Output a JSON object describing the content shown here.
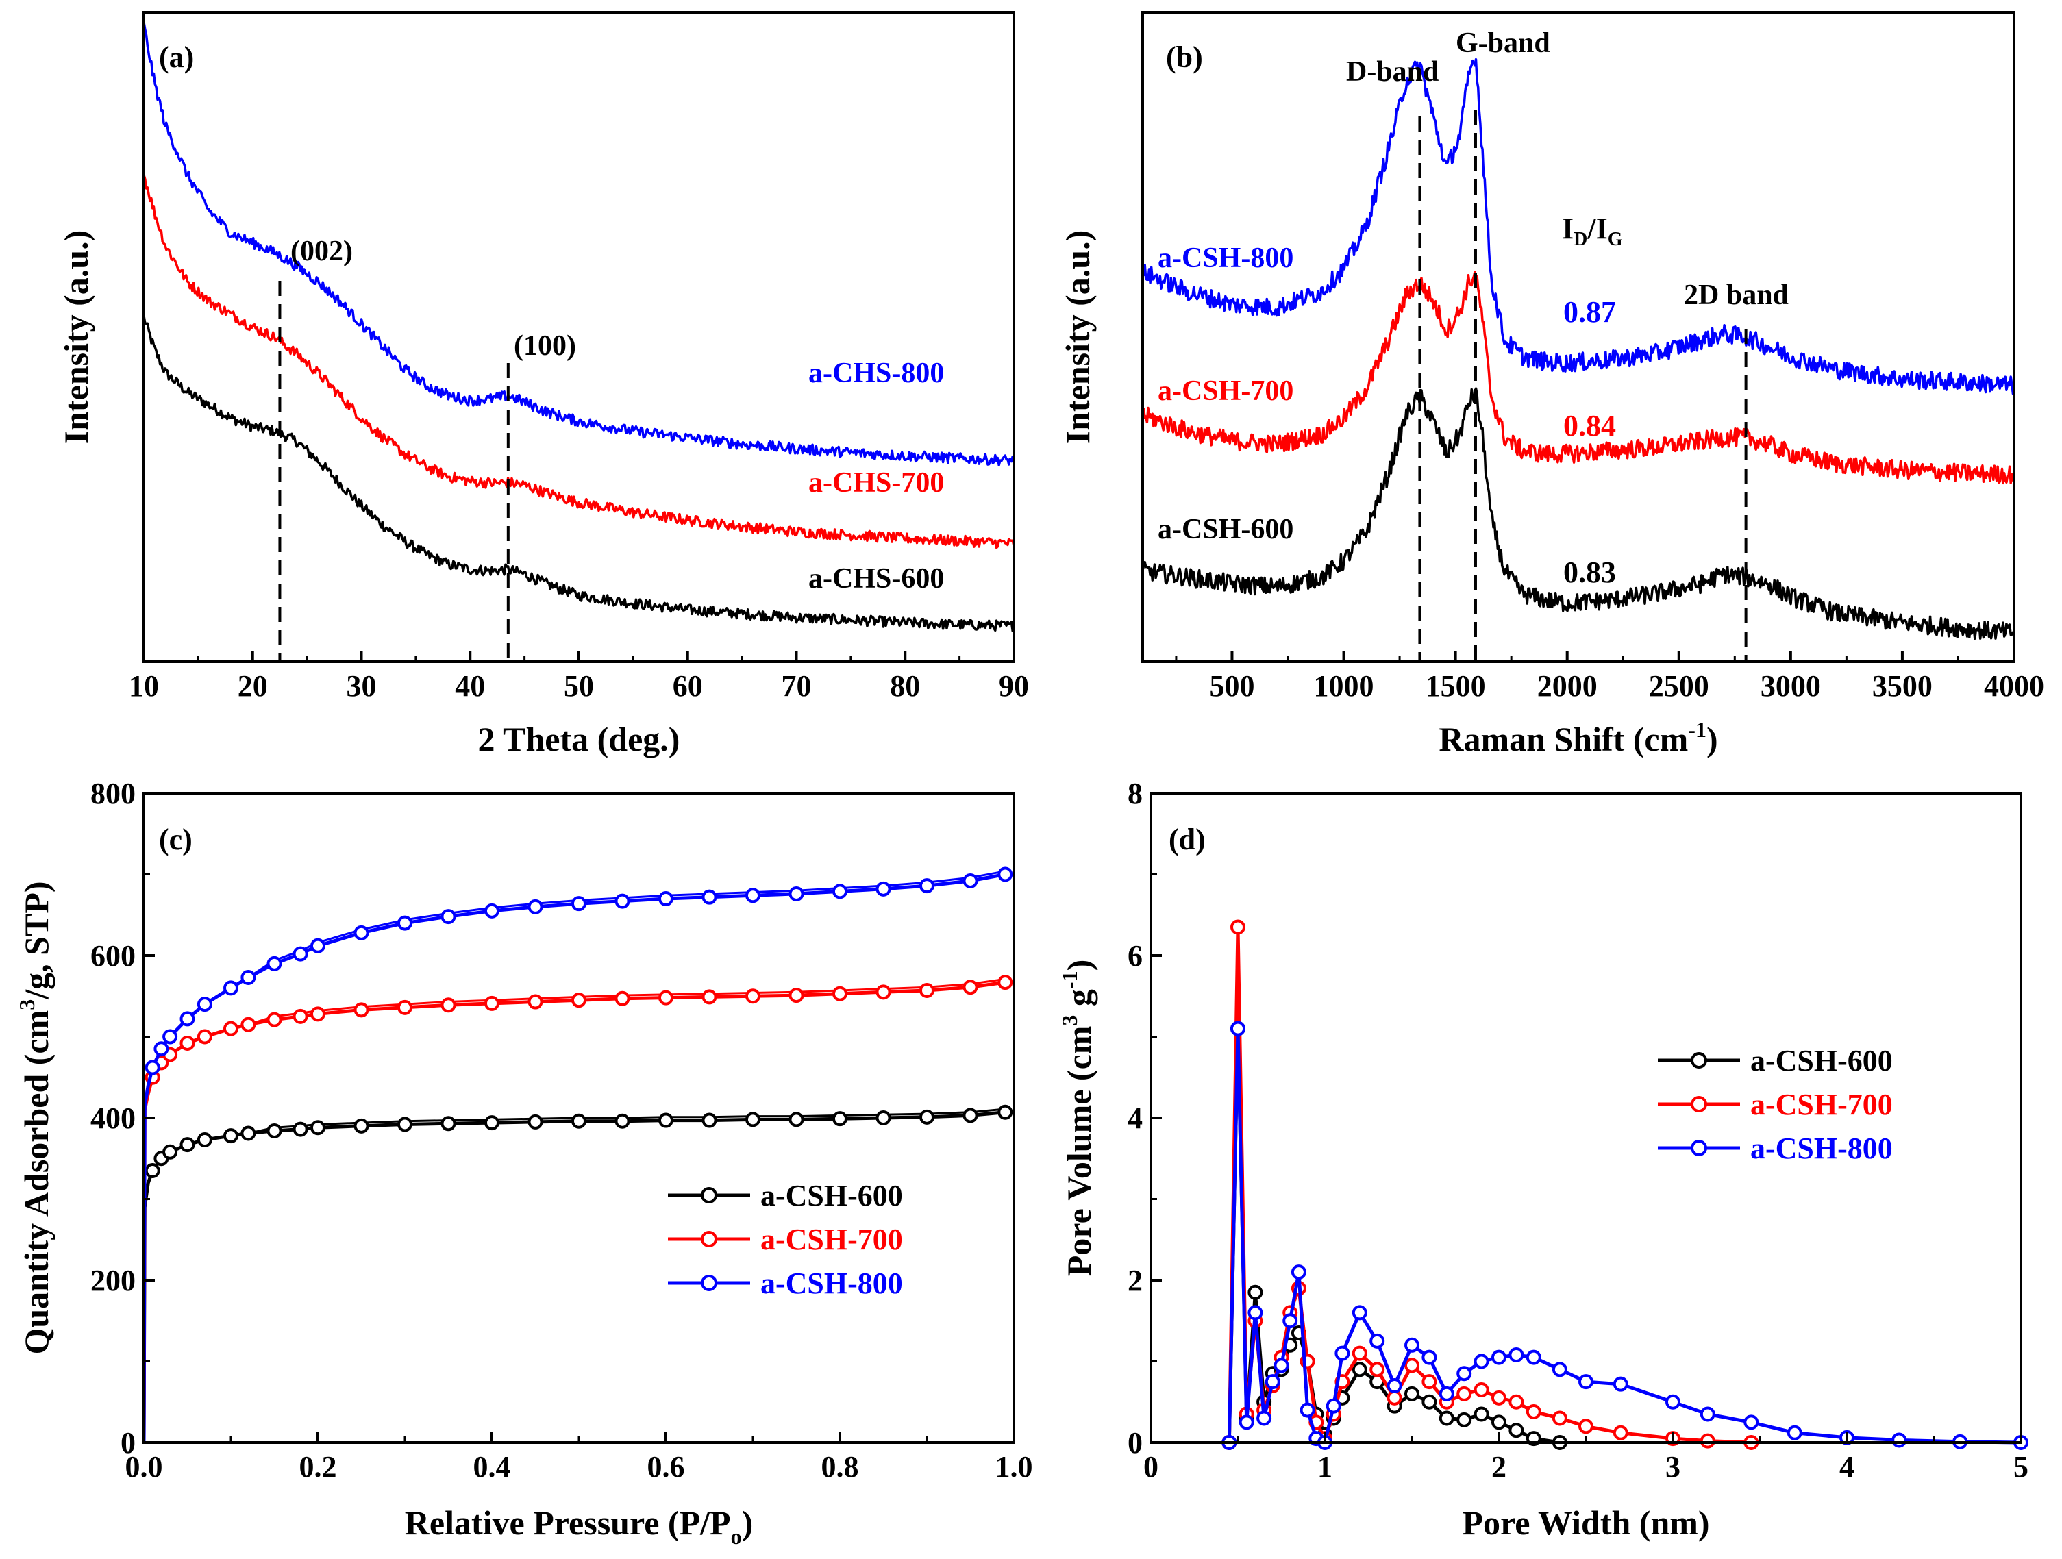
{
  "colors": {
    "s600": "#000000",
    "s700": "#ff0000",
    "s800": "#0000ff"
  },
  "chart_data": [
    {
      "panel": "(a)",
      "type": "line",
      "xlabel": "2 Theta (deg.)",
      "ylabel": "Intensity (a.u.)",
      "xlim": [
        10,
        90
      ],
      "ylim": [
        0,
        10
      ],
      "xticks": [
        10,
        20,
        30,
        40,
        50,
        60,
        70,
        80,
        90
      ],
      "peaks": [
        {
          "label": "(002)",
          "x": 22.5
        },
        {
          "label": "(100)",
          "x": 43.5
        }
      ],
      "series": [
        {
          "name": "a-CHS-600",
          "color": "#000000",
          "x": [
            10,
            11,
            12,
            14,
            16,
            18,
            20,
            22,
            24,
            26,
            28,
            30,
            32,
            34,
            36,
            38,
            40,
            42,
            43.5,
            45,
            47,
            50,
            55,
            60,
            65,
            70,
            75,
            80,
            85,
            90
          ],
          "y": [
            5.3,
            4.8,
            4.45,
            4.15,
            3.95,
            3.75,
            3.62,
            3.55,
            3.4,
            3.1,
            2.75,
            2.4,
            2.1,
            1.85,
            1.65,
            1.5,
            1.42,
            1.4,
            1.42,
            1.35,
            1.2,
            1.02,
            0.9,
            0.8,
            0.74,
            0.68,
            0.64,
            0.6,
            0.57,
            0.55
          ]
        },
        {
          "name": "a-CHS-700",
          "color": "#ff0000",
          "x": [
            10,
            11,
            12,
            14,
            16,
            18,
            20,
            22,
            24,
            26,
            28,
            30,
            32,
            34,
            36,
            38,
            40,
            42,
            43.5,
            45,
            47,
            50,
            55,
            60,
            65,
            70,
            75,
            80,
            85,
            90
          ],
          "y": [
            7.5,
            6.9,
            6.4,
            5.85,
            5.55,
            5.35,
            5.15,
            5.0,
            4.75,
            4.45,
            4.1,
            3.75,
            3.45,
            3.2,
            3.0,
            2.85,
            2.78,
            2.75,
            2.76,
            2.72,
            2.6,
            2.45,
            2.3,
            2.18,
            2.08,
            2.0,
            1.95,
            1.9,
            1.86,
            1.82
          ]
        },
        {
          "name": "a-CHS-800",
          "color": "#0000ff",
          "x": [
            10,
            11,
            12,
            14,
            16,
            18,
            20,
            22,
            24,
            26,
            28,
            30,
            32,
            34,
            36,
            38,
            40,
            42,
            43.5,
            45,
            47,
            50,
            55,
            60,
            65,
            70,
            75,
            80,
            85,
            90
          ],
          "y": [
            9.8,
            8.9,
            8.25,
            7.5,
            6.95,
            6.6,
            6.45,
            6.3,
            6.1,
            5.85,
            5.55,
            5.2,
            4.85,
            4.5,
            4.25,
            4.1,
            4.02,
            4.05,
            4.1,
            4.0,
            3.85,
            3.7,
            3.55,
            3.45,
            3.35,
            3.28,
            3.22,
            3.17,
            3.13,
            3.1
          ]
        }
      ]
    },
    {
      "panel": "(b)",
      "type": "line",
      "xlabel": "Raman Shift (cm",
      "xlabel_sup": "-1",
      "xlabel_end": ")",
      "ylabel": "Intensity (a.u.)",
      "xlim": [
        100,
        4000
      ],
      "ylim": [
        0,
        10
      ],
      "xticks": [
        500,
        1000,
        1500,
        2000,
        2500,
        3000,
        3500,
        4000
      ],
      "bands": [
        {
          "label": "D-band",
          "x": 1340
        },
        {
          "label": "G-band",
          "x": 1590
        },
        {
          "label": "2D band",
          "x": 2800
        }
      ],
      "ratio_label": {
        "main": "I",
        "sub1": "D",
        "slash": "/I",
        "sub2": "G"
      },
      "ratios": [
        {
          "name": "a-CSH-800",
          "value": "0.87",
          "color": "#0000ff"
        },
        {
          "name": "a-CSH-700",
          "value": "0.84",
          "color": "#ff0000"
        },
        {
          "name": "a-CSH-600",
          "value": "0.83",
          "color": "#000000"
        }
      ],
      "series": [
        {
          "name": "a-CSH-600",
          "color": "#000000",
          "x": [
            100,
            300,
            500,
            700,
            900,
            1000,
            1100,
            1200,
            1280,
            1340,
            1400,
            1460,
            1520,
            1560,
            1590,
            1620,
            1660,
            1720,
            1800,
            1900,
            2000,
            2200,
            2400,
            2600,
            2700,
            2800,
            2900,
            3000,
            3200,
            3500,
            3800,
            4000
          ],
          "y": [
            1.4,
            1.3,
            1.2,
            1.15,
            1.3,
            1.55,
            2.0,
            2.9,
            3.8,
            4.1,
            3.7,
            3.2,
            3.5,
            4.0,
            4.15,
            3.5,
            2.2,
            1.4,
            1.05,
            0.95,
            0.9,
            0.95,
            1.05,
            1.2,
            1.35,
            1.3,
            1.2,
            1.0,
            0.75,
            0.6,
            0.5,
            0.45
          ]
        },
        {
          "name": "a-CSH-700",
          "color": "#ff0000",
          "x": [
            100,
            300,
            500,
            700,
            900,
            1000,
            1100,
            1200,
            1280,
            1340,
            1400,
            1460,
            1520,
            1560,
            1590,
            1620,
            1660,
            1720,
            1800,
            1900,
            2000,
            2200,
            2400,
            2600,
            2700,
            2800,
            2900,
            3000,
            3200,
            3500,
            3800,
            4000
          ],
          "y": [
            3.8,
            3.55,
            3.4,
            3.35,
            3.5,
            3.75,
            4.2,
            4.95,
            5.65,
            5.85,
            5.55,
            5.1,
            5.4,
            5.85,
            5.95,
            5.3,
            4.1,
            3.45,
            3.25,
            3.2,
            3.2,
            3.25,
            3.3,
            3.4,
            3.45,
            3.45,
            3.35,
            3.2,
            3.05,
            2.95,
            2.9,
            2.88
          ]
        },
        {
          "name": "a-CSH-800",
          "color": "#0000ff",
          "x": [
            100,
            300,
            500,
            700,
            900,
            1000,
            1100,
            1200,
            1280,
            1340,
            1400,
            1460,
            1520,
            1560,
            1590,
            1620,
            1660,
            1720,
            1800,
            1900,
            2000,
            2200,
            2400,
            2600,
            2700,
            2800,
            2900,
            3000,
            3200,
            3500,
            3800,
            4000
          ],
          "y": [
            6.0,
            5.7,
            5.5,
            5.45,
            5.7,
            6.05,
            6.7,
            7.9,
            8.95,
            9.2,
            8.4,
            7.6,
            8.1,
            9.05,
            9.35,
            7.9,
            5.9,
            4.95,
            4.7,
            4.62,
            4.6,
            4.65,
            4.75,
            4.95,
            5.05,
            5.0,
            4.85,
            4.7,
            4.5,
            4.35,
            4.3,
            4.25
          ]
        }
      ]
    },
    {
      "panel": "(c)",
      "type": "line",
      "xlabel": "Relative Pressure (P/P",
      "xlabel_sub": "o",
      "xlabel_end": ")",
      "ylabel": "Quantity Adsorbed (cm",
      "ylabel_sup": "3",
      "ylabel_end": "/g, STP)",
      "xlim": [
        0.0,
        1.0
      ],
      "ylim": [
        0,
        800
      ],
      "xticks": [
        "0.0",
        "0.2",
        "0.4",
        "0.6",
        "0.8",
        "1.0"
      ],
      "yticks": [
        0,
        200,
        400,
        600,
        800
      ],
      "legend": "center-right",
      "x": [
        0.001,
        0.005,
        0.01,
        0.02,
        0.03,
        0.05,
        0.07,
        0.1,
        0.12,
        0.15,
        0.18,
        0.2,
        0.25,
        0.3,
        0.35,
        0.4,
        0.45,
        0.5,
        0.55,
        0.6,
        0.65,
        0.7,
        0.75,
        0.8,
        0.85,
        0.9,
        0.95,
        0.99
      ],
      "series": [
        {
          "name": "a-CSH-600",
          "color": "#000000",
          "values": [
            290,
            320,
            335,
            350,
            358,
            367,
            373,
            378,
            381,
            384,
            386,
            388,
            390,
            392,
            393,
            394,
            395,
            396,
            396,
            397,
            397,
            398,
            398,
            399,
            400,
            401,
            403,
            407
          ]
        },
        {
          "name": "a-CSH-700",
          "color": "#ff0000",
          "values": [
            410,
            430,
            450,
            468,
            478,
            492,
            500,
            510,
            515,
            521,
            525,
            528,
            533,
            536,
            539,
            541,
            543,
            545,
            547,
            548,
            549,
            550,
            551,
            553,
            555,
            557,
            561,
            567
          ]
        },
        {
          "name": "a-CSH-800",
          "color": "#0000ff",
          "values": [
            415,
            440,
            462,
            485,
            500,
            522,
            540,
            560,
            573,
            590,
            602,
            612,
            628,
            640,
            648,
            655,
            660,
            664,
            667,
            670,
            672,
            674,
            676,
            679,
            682,
            686,
            692,
            700
          ]
        }
      ]
    },
    {
      "panel": "(d)",
      "type": "line",
      "xlabel": "Pore Width (nm)",
      "ylabel": "Pore Volume (cm",
      "ylabel_sup1": "3",
      "ylabel_mid": " g",
      "ylabel_sup2": "-1",
      "ylabel_end": ")",
      "xlim": [
        0,
        5
      ],
      "ylim": [
        0,
        8
      ],
      "xticks": [
        0,
        1,
        2,
        3,
        4,
        5
      ],
      "yticks": [
        0,
        2,
        4,
        6,
        8
      ],
      "legend": "upper-right",
      "series": [
        {
          "name": "a-CSH-600",
          "color": "#000000",
          "x": [
            0.45,
            0.5,
            0.55,
            0.6,
            0.65,
            0.7,
            0.75,
            0.8,
            0.85,
            0.9,
            0.95,
            1.0,
            1.05,
            1.1,
            1.2,
            1.3,
            1.4,
            1.5,
            1.6,
            1.7,
            1.8,
            1.9,
            2.0,
            2.1,
            2.2,
            2.35
          ],
          "y": [
            0,
            5.1,
            0.3,
            1.85,
            0.5,
            0.85,
            0.9,
            1.2,
            1.35,
            1.0,
            0.35,
            0.1,
            0.3,
            0.55,
            0.9,
            0.75,
            0.45,
            0.6,
            0.5,
            0.3,
            0.28,
            0.35,
            0.25,
            0.15,
            0.05,
            0
          ]
        },
        {
          "name": "a-CSH-700",
          "color": "#ff0000",
          "x": [
            0.45,
            0.5,
            0.55,
            0.6,
            0.65,
            0.7,
            0.75,
            0.8,
            0.85,
            0.9,
            0.95,
            1.0,
            1.05,
            1.1,
            1.2,
            1.3,
            1.4,
            1.5,
            1.6,
            1.7,
            1.8,
            1.9,
            2.0,
            2.1,
            2.2,
            2.35,
            2.5,
            2.7,
            3.0,
            3.2,
            3.45
          ],
          "y": [
            0,
            6.35,
            0.35,
            1.5,
            0.4,
            0.7,
            1.05,
            1.6,
            1.9,
            1.0,
            0.25,
            0.05,
            0.35,
            0.75,
            1.1,
            0.9,
            0.55,
            0.95,
            0.75,
            0.5,
            0.6,
            0.65,
            0.55,
            0.5,
            0.38,
            0.3,
            0.2,
            0.12,
            0.05,
            0.02,
            0
          ]
        },
        {
          "name": "a-CSH-800",
          "color": "#0000ff",
          "x": [
            0.45,
            0.5,
            0.55,
            0.6,
            0.65,
            0.7,
            0.75,
            0.8,
            0.85,
            0.9,
            0.95,
            1.0,
            1.05,
            1.1,
            1.2,
            1.3,
            1.4,
            1.5,
            1.6,
            1.7,
            1.8,
            1.9,
            2.0,
            2.1,
            2.2,
            2.35,
            2.5,
            2.7,
            3.0,
            3.2,
            3.45,
            3.7,
            4.0,
            4.3,
            4.65,
            5.0
          ],
          "y": [
            0,
            5.1,
            0.25,
            1.6,
            0.3,
            0.75,
            0.95,
            1.5,
            2.1,
            0.4,
            0.05,
            0.0,
            0.45,
            1.1,
            1.6,
            1.25,
            0.7,
            1.2,
            1.05,
            0.6,
            0.85,
            1.0,
            1.05,
            1.08,
            1.05,
            0.9,
            0.75,
            0.72,
            0.5,
            0.35,
            0.25,
            0.12,
            0.06,
            0.03,
            0.01,
            0
          ]
        }
      ]
    }
  ]
}
